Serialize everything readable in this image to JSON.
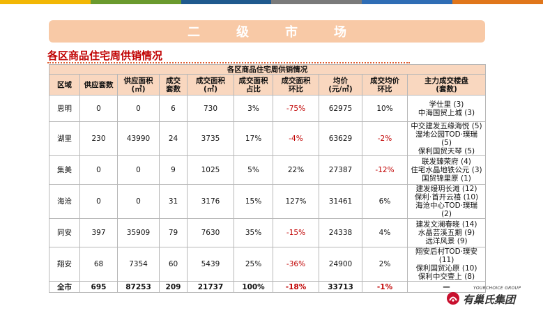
{
  "topbar_colors": [
    "#f2b705",
    "#6a9a2e",
    "#1f5a8e",
    "#7a7a7a",
    "#2f6db5",
    "#e0761b"
  ],
  "banner": {
    "title": "二级市场"
  },
  "section_title": "各区商品住宅周供销情况",
  "table": {
    "caption": "各区商品住宅周供销情况",
    "headers": [
      "区域",
      "供应套数",
      "供应面积\n(㎡)",
      "成交\n套数",
      "成交面积\n(㎡)",
      "成交面积\n占比",
      "成交面积\n环比",
      "均价\n(元/㎡)",
      "成交均价\n环比",
      "主力成交楼盘\n(套数)"
    ],
    "rows": [
      {
        "district": "思明",
        "supply_units": "0",
        "supply_area": "0",
        "deal_units": "6",
        "deal_area": "730",
        "share": "3%",
        "area_mom": "-75%",
        "area_mom_neg": true,
        "avg_price": "62975",
        "price_mom": "10%",
        "price_mom_neg": false,
        "projects": [
          "学仕里 (3)",
          "中海国贸上城 (3)"
        ]
      },
      {
        "district": "湖里",
        "supply_units": "230",
        "supply_area": "43990",
        "deal_units": "24",
        "deal_area": "3735",
        "share": "17%",
        "area_mom": "-4%",
        "area_mom_neg": true,
        "avg_price": "63629",
        "price_mom": "-2%",
        "price_mom_neg": true,
        "projects": [
          "中交建发五缘海悦 (5)",
          "湿地公园TOD·璞瑞 (5)",
          "保利国贸天琴 (5)"
        ]
      },
      {
        "district": "集美",
        "supply_units": "0",
        "supply_area": "0",
        "deal_units": "9",
        "deal_area": "1025",
        "share": "5%",
        "area_mom": "22%",
        "area_mom_neg": false,
        "avg_price": "27387",
        "price_mom": "-12%",
        "price_mom_neg": true,
        "projects": [
          "联发臻荣府 (4)",
          "住宅水晶地铁公元 (3)",
          "国贸锦里原 (1)"
        ]
      },
      {
        "district": "海沧",
        "supply_units": "0",
        "supply_area": "0",
        "deal_units": "31",
        "deal_area": "3176",
        "share": "15%",
        "area_mom": "127%",
        "area_mom_neg": false,
        "avg_price": "31461",
        "price_mom": "6%",
        "price_mom_neg": false,
        "projects": [
          "建发缦玥长滩 (12)",
          "保利·首开云禧 (10)",
          "海沧中心TOD·璞瑞 (2)"
        ]
      },
      {
        "district": "同安",
        "supply_units": "397",
        "supply_area": "35909",
        "deal_units": "79",
        "deal_area": "7630",
        "share": "35%",
        "area_mom": "-15%",
        "area_mom_neg": true,
        "avg_price": "24338",
        "price_mom": "4%",
        "price_mom_neg": false,
        "projects": [
          "建发文澜春晓 (14)",
          "水晶芸溪五期 (9)",
          "远洋风景 (9)"
        ]
      },
      {
        "district": "翔安",
        "supply_units": "68",
        "supply_area": "7354",
        "deal_units": "60",
        "deal_area": "5439",
        "share": "25%",
        "area_mom": "-36%",
        "area_mom_neg": true,
        "avg_price": "24900",
        "price_mom": "2%",
        "price_mom_neg": false,
        "projects": [
          "翔安后村TOD·璞安 (11)",
          "保利国贸沁原 (10)",
          "保利中交壹上 (8)"
        ]
      }
    ],
    "total": {
      "district": "全市",
      "supply_units": "695",
      "supply_area": "87253",
      "deal_units": "209",
      "deal_area": "21737",
      "share": "100%",
      "area_mom": "-18%",
      "avg_price": "33713",
      "price_mom": "-1%",
      "projects": "—"
    }
  },
  "logo": {
    "en": "YOURCHOICE GROUP",
    "cn": "有巢氏集团",
    "colors": {
      "red": "#c8102e",
      "text": "#333333"
    }
  }
}
